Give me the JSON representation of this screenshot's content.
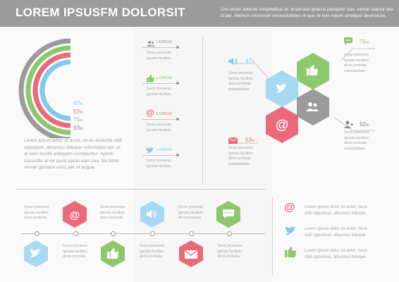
{
  "header": {
    "title": "LOREM IPSUSFM DOLORSIT",
    "text": "Usu unum aeterno voluptatibus et, et persius graecis percipitur duo, verear utamur des id per. Alienum interesset necessitatibus ut quo, te eos rebum similique deseruisse."
  },
  "colors": {
    "blue": "#7ecbef",
    "red": "#ea6a7c",
    "green": "#8dc86c",
    "gray": "#9b9b9b"
  },
  "arc_chart": {
    "type": "concentric-arc",
    "values": [
      {
        "label": "47%",
        "value": 47,
        "color": "blue"
      },
      {
        "label": "53%",
        "value": 53,
        "color": "red"
      },
      {
        "label": "75%",
        "value": 75,
        "color": "green"
      },
      {
        "label": "93%",
        "value": 93,
        "color": "gray"
      }
    ],
    "percent_labels": [
      {
        "num": "47",
        "sym": "%"
      },
      {
        "num": "53",
        "sym": "%"
      },
      {
        "num": "75",
        "sym": "%"
      },
      {
        "num": "93",
        "sym": "%"
      }
    ],
    "paragraph": "Lorem ipsum dolor sit amet, ne an autemfa stidi opporteat, alluamco tidieque reformidan spn ut, at eam eruditi antiopam complecttur. Aperiri iracundia at vix quod patrio eam sea. No dolor verear gloriatur eam, per at augue."
  },
  "social_list": [
    {
      "label": "LOREM",
      "icon": "users-icon",
      "color": "gray",
      "text1": "Sove posseso",
      "text2": "Ignota facilisic"
    },
    {
      "label": "LOREM",
      "icon": "thumbs-up-icon",
      "color": "green",
      "text1": "Sove posseso",
      "text2": "Ignota facilisic"
    },
    {
      "label": "LOREM",
      "icon": "at-icon",
      "color": "red",
      "text1": "Sove posseso",
      "text2": "Ignota facilisic"
    },
    {
      "label": "LOREM",
      "icon": "bird-icon",
      "color": "blue",
      "text1": "Sove posseso",
      "text2": "Ignota facilisic"
    }
  ],
  "hex_cluster": {
    "callouts": [
      {
        "value": "47",
        "sym": "%",
        "icon": "speaker-icon",
        "color": "blue",
        "lines": [
          "Sove posseso",
          "Ignota facilisic",
          "dicta probatu",
          "voluptatibus"
        ]
      },
      {
        "value": "75",
        "sym": "%",
        "icon": "chat-icon",
        "color": "green",
        "lines": [
          "Sove posseso",
          "Ignota facilisic",
          "dicta probatu",
          "voluptatibus"
        ]
      },
      {
        "value": "53",
        "sym": "%",
        "icon": "envelope-icon",
        "color": "red",
        "lines": [
          "Sove posseso",
          "Ignota facilisic",
          "dicta probatu",
          "voluptatibus"
        ]
      },
      {
        "value": "92",
        "sym": "%",
        "icon": "user-icon",
        "color": "gray",
        "lines": [
          "Sove posseso",
          "Ignota facilisic",
          "dicta probatu",
          "voluptatibus"
        ]
      }
    ]
  },
  "timeline": {
    "items": [
      {
        "lines": [
          "Sove posseso",
          "Ignota facilisic",
          "dicta probatu"
        ],
        "icon": "at-icon",
        "color": "red",
        "pos": "top"
      },
      {
        "lines": [
          "Sove posseso",
          "Ignota facilisic",
          "dicta probatu"
        ],
        "icon": "speaker-icon",
        "color": "blue",
        "pos": "top"
      },
      {
        "lines": [
          "Sove posseso",
          "Ignota facilisic",
          "dicta probatu"
        ],
        "icon": "chat-icon",
        "color": "green",
        "pos": "top"
      },
      {
        "lines": [
          "Sove posseso",
          "Ignota facilisic",
          "dicta probatu"
        ],
        "icon": "bird-icon",
        "color": "blue",
        "pos": "bottom"
      },
      {
        "lines": [
          "Sove posseso",
          "Ignota facilisic",
          "dicta probatu"
        ],
        "icon": "thumbs-up-icon",
        "color": "green",
        "pos": "bottom"
      },
      {
        "lines": [
          "Sove posseso",
          "Ignota facilisic",
          "dicta probatu"
        ],
        "icon": "envelope-icon",
        "color": "red",
        "pos": "bottom"
      },
      {
        "lines": [
          "Sove posseso",
          "Ignota facilisic",
          "dicta probatu"
        ],
        "icon": "",
        "color": "",
        "pos": "bottom"
      }
    ]
  },
  "right_list": [
    {
      "icon": "at-icon",
      "color": "red",
      "line1": "Lorem ipsum dolor sit amet, neca",
      "line2": "stidi opporteat, alluamco tideque."
    },
    {
      "icon": "bird-icon",
      "color": "blue",
      "line1": "Lorem ipsum dolor sit amet, neca",
      "line2": "stidi opporteat, alluamco tideque."
    },
    {
      "icon": "thumbs-up-icon",
      "color": "green",
      "line1": "Lorem ipsum dolor sit amet, neca",
      "line2": "stidi opporteat, alluamco tideque."
    }
  ]
}
